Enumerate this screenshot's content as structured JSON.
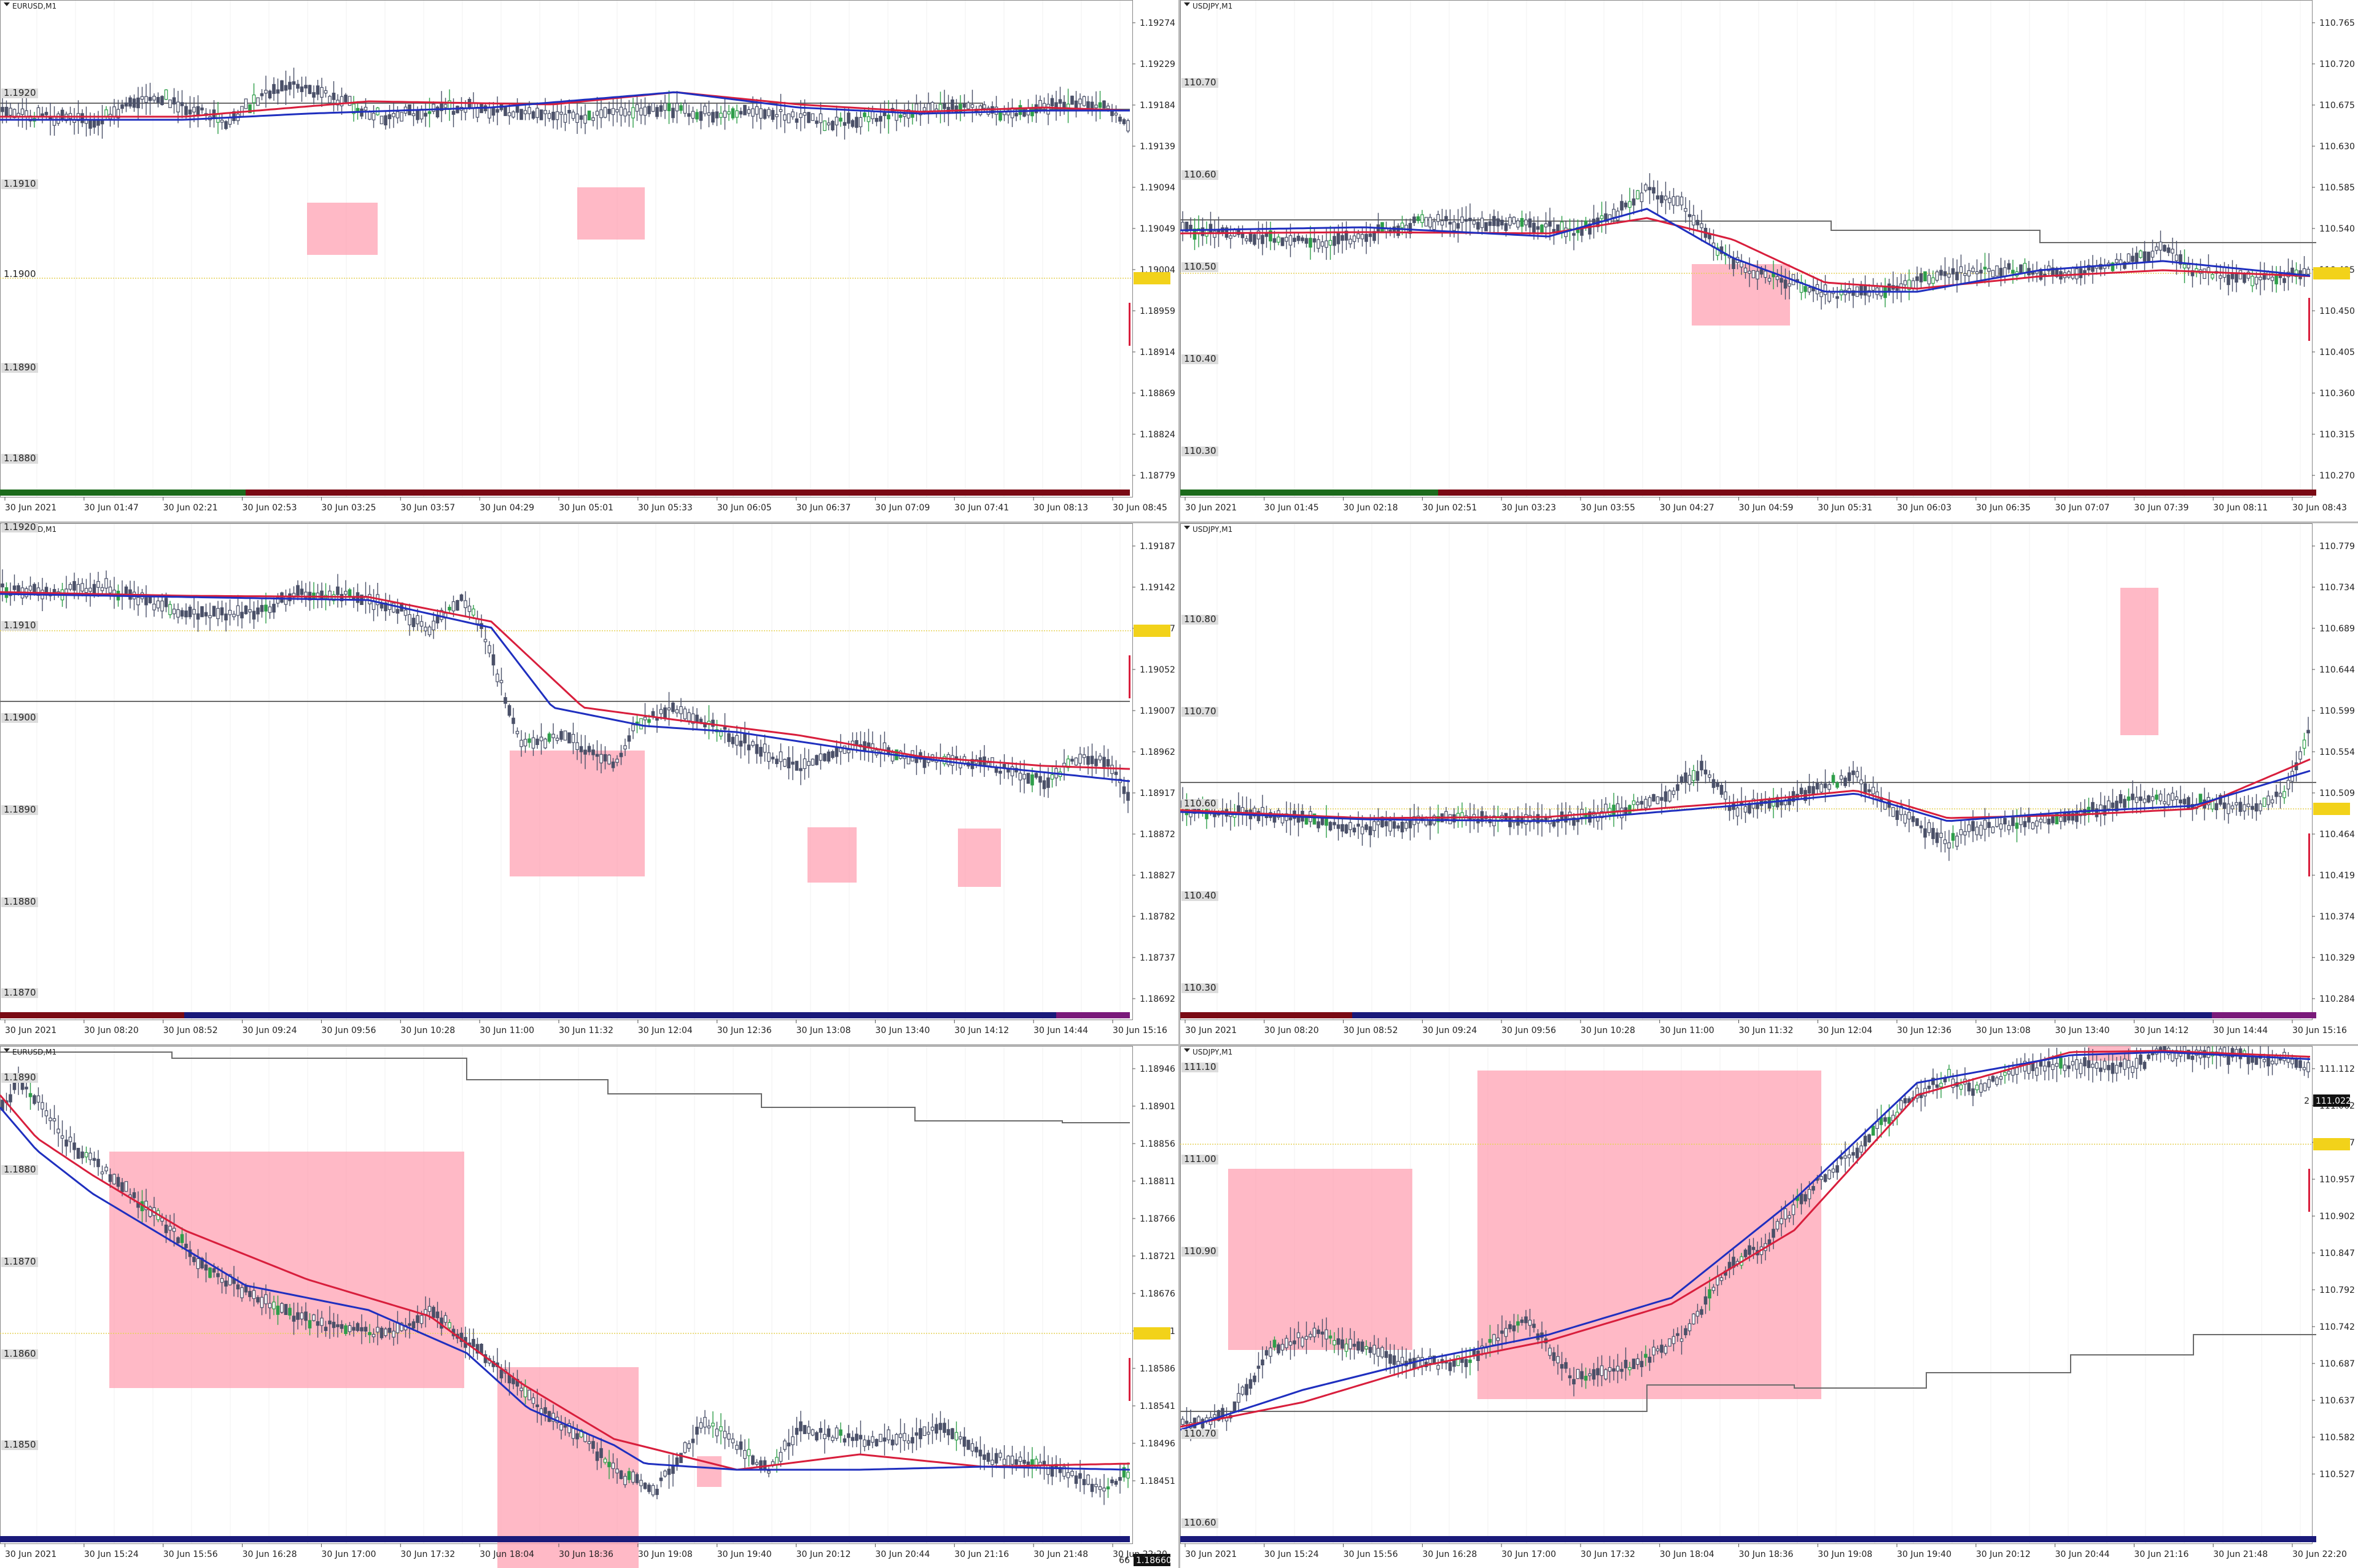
{
  "colors": {
    "background": "#ffffff",
    "candle": "#4a5068",
    "candle_up": "#2f9e4a",
    "ma_fast": "#1f2fbf",
    "ma_slow": "#d81e3c",
    "level_line": "#6b6b6b",
    "zone": "#ff9eb0",
    "price_line": "#e6d25a",
    "price_tag": "#f2d21a",
    "axis_text": "#222222",
    "label_bg": "#dcdcdc"
  },
  "icons": {
    "collapse": "triangle-down-icon"
  },
  "charts": [
    {
      "title": "EURUSD,M1",
      "price_right": [
        "1.19274",
        "1.19229",
        "1.19184",
        "1.19139",
        "1.19094",
        "1.19049",
        "1.19004",
        "1.18959",
        "1.18914",
        "1.18869",
        "1.18824",
        "1.18779"
      ],
      "price_left": [
        "1.1920",
        "1.1910",
        "1.1890",
        "1.1880"
      ],
      "price_left_marked": "1.1900",
      "times": [
        "30 Jun 2021",
        "30 Jun 01:47",
        "30 Jun 02:21",
        "30 Jun 02:53",
        "30 Jun 03:25",
        "30 Jun 03:57",
        "30 Jun 04:29",
        "30 Jun 05:01",
        "30 Jun 05:33",
        "30 Jun 06:05",
        "30 Jun 06:37",
        "30 Jun 07:09",
        "30 Jun 07:41",
        "30 Jun 08:13",
        "30 Jun 08:45"
      ]
    },
    {
      "title": "USDJPY,M1",
      "price_right": [
        "110.765",
        "110.720",
        "110.675",
        "110.630",
        "110.585",
        "110.540",
        "110.495",
        "110.450",
        "110.405",
        "110.360",
        "110.315",
        "110.270"
      ],
      "price_left": [
        "110.70",
        "110.60",
        "110.50",
        "110.40",
        "110.30"
      ],
      "times": [
        "30 Jun 2021",
        "30 Jun 01:45",
        "30 Jun 02:18",
        "30 Jun 02:51",
        "30 Jun 03:23",
        "30 Jun 03:55",
        "30 Jun 04:27",
        "30 Jun 04:59",
        "30 Jun 05:31",
        "30 Jun 06:03",
        "30 Jun 06:35",
        "30 Jun 07:07",
        "30 Jun 07:39",
        "30 Jun 08:11",
        "30 Jun 08:43"
      ]
    },
    {
      "title": "EURUSD,M1",
      "price_right": [
        "1.19187",
        "1.19142",
        "1.19097",
        "1.19052",
        "1.19007",
        "1.18962",
        "1.18917",
        "1.18872",
        "1.18827",
        "1.18782",
        "1.18737",
        "1.18692"
      ],
      "price_left": [
        "1.1920",
        "1.1910",
        "1.1900",
        "1.1890",
        "1.1880",
        "1.1870"
      ],
      "times": [
        "30 Jun 2021",
        "30 Jun 08:20",
        "30 Jun 08:52",
        "30 Jun 09:24",
        "30 Jun 09:56",
        "30 Jun 10:28",
        "30 Jun 11:00",
        "30 Jun 11:32",
        "30 Jun 12:04",
        "30 Jun 12:36",
        "30 Jun 13:08",
        "30 Jun 13:40",
        "30 Jun 14:12",
        "30 Jun 14:44",
        "30 Jun 15:16"
      ]
    },
    {
      "title": "USDJPY,M1",
      "price_right": [
        "110.779",
        "110.734",
        "110.689",
        "110.644",
        "110.599",
        "110.554",
        "110.509",
        "110.464",
        "110.419",
        "110.374",
        "110.329",
        "110.284"
      ],
      "price_left": [
        "110.80",
        "110.70",
        "110.60",
        "110.40",
        "110.30"
      ],
      "times": [
        "30 Jun 2021",
        "30 Jun 08:20",
        "30 Jun 08:52",
        "30 Jun 09:24",
        "30 Jun 09:56",
        "30 Jun 10:28",
        "30 Jun 11:00",
        "30 Jun 11:32",
        "30 Jun 12:04",
        "30 Jun 12:36",
        "30 Jun 13:08",
        "30 Jun 13:40",
        "30 Jun 14:12",
        "30 Jun 14:44",
        "30 Jun 15:16"
      ]
    },
    {
      "title": "EURUSD,M1",
      "price_right": [
        "1.18946",
        "1.18901",
        "1.18856",
        "1.18811",
        "1.18766",
        "1.18721",
        "1.18676",
        "1.18631",
        "1.18586",
        "1.18541",
        "1.18496",
        "1.18451"
      ],
      "price_left": [
        "1.1890",
        "1.1880",
        "1.1870",
        "1.1860",
        "1.1850"
      ],
      "current_price": "1.18660",
      "current_badge": "66",
      "times": [
        "30 Jun 2021",
        "30 Jun 15:24",
        "30 Jun 15:56",
        "30 Jun 16:28",
        "30 Jun 17:00",
        "30 Jun 17:32",
        "30 Jun 18:04",
        "30 Jun 18:36",
        "30 Jun 19:08",
        "30 Jun 19:40",
        "30 Jun 20:12",
        "30 Jun 20:44",
        "30 Jun 21:16",
        "30 Jun 21:48",
        "30 Jun 22:20"
      ]
    },
    {
      "title": "USDJPY,M1",
      "price_right": [
        "111.112",
        "111.062",
        "111.007",
        "110.957",
        "110.902",
        "110.847",
        "110.792",
        "110.742",
        "110.687",
        "110.637",
        "110.582",
        "110.527"
      ],
      "price_left": [
        "111.10",
        "111.00",
        "110.90",
        "110.70",
        "110.60"
      ],
      "current_price": "111.022",
      "current_badge": "2",
      "times": [
        "30 Jun 2021",
        "30 Jun 15:24",
        "30 Jun 15:56",
        "30 Jun 16:28",
        "30 Jun 17:00",
        "30 Jun 17:32",
        "30 Jun 18:04",
        "30 Jun 18:36",
        "30 Jun 19:08",
        "30 Jun 19:40",
        "30 Jun 20:12",
        "30 Jun 20:44",
        "30 Jun 21:16",
        "30 Jun 21:48",
        "30 Jun 22:20"
      ]
    }
  ]
}
